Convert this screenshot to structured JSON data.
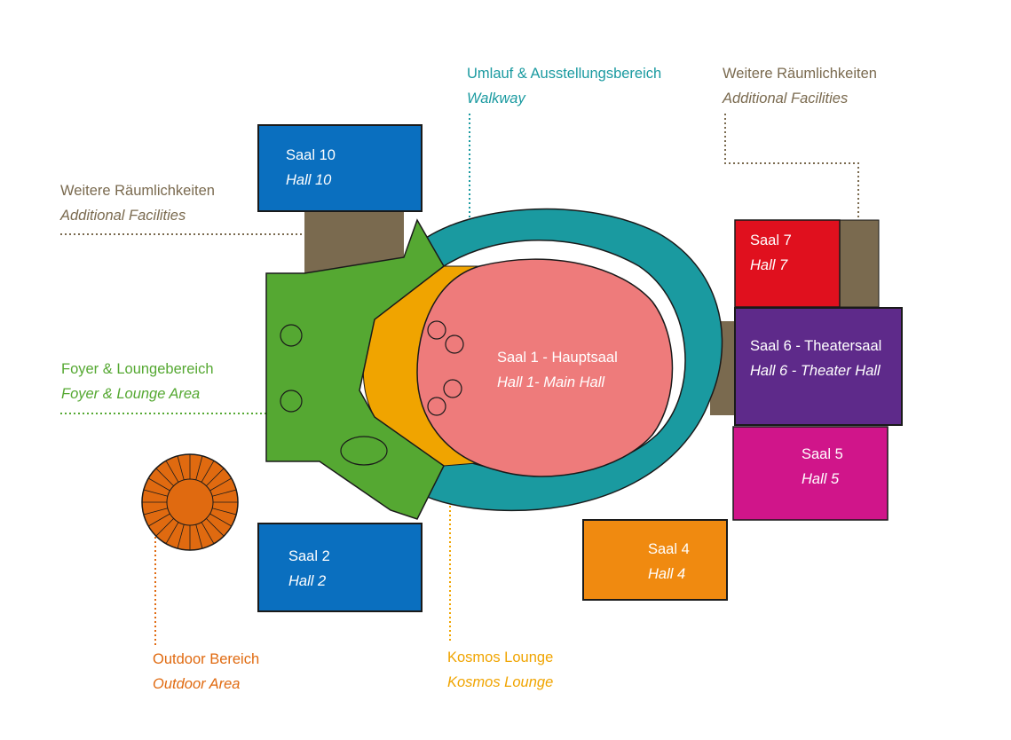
{
  "legend": {
    "walkway": {
      "de": "Umlauf & Ausstellungsbereich",
      "en": "Walkway",
      "color": "#1a9aa0"
    },
    "facilities_left": {
      "de": "Weitere Räumlichkeiten",
      "en": "Additional Facilities",
      "color": "#7a6a4f"
    },
    "facilities_right": {
      "de": "Weitere Räumlichkeiten",
      "en": "Additional Facilities",
      "color": "#7a6a4f"
    },
    "foyer": {
      "de": "Foyer & Loungebereich",
      "en": "Foyer & Lounge Area",
      "color": "#55a832"
    },
    "outdoor": {
      "de": "Outdoor Bereich",
      "en": "Outdoor Area",
      "color": "#e06a10"
    },
    "kosmos": {
      "de": "Kosmos Lounge",
      "en": "Kosmos Lounge",
      "color": "#f0a400"
    }
  },
  "rooms": {
    "saal10": {
      "de": "Saal 10",
      "en": "Hall 10",
      "color": "#0a6fbf"
    },
    "saal2": {
      "de": "Saal 2",
      "en": "Hall 2",
      "color": "#0a6fbf"
    },
    "saal1": {
      "de": "Saal 1 - Hauptsaal",
      "en": "Hall 1- Main Hall",
      "color": "#ee7b7b"
    },
    "saal7": {
      "de": "Saal 7",
      "en": "Hall 7",
      "color": "#e0101e"
    },
    "saal6": {
      "de": "Saal 6 - Theatersaal",
      "en": "Hall 6 - Theater Hall",
      "color": "#5e2a8a"
    },
    "saal5": {
      "de": "Saal 5",
      "en": "Hall 5",
      "color": "#d0158a"
    },
    "saal4": {
      "de": "Saal 4",
      "en": "Hall 4",
      "color": "#f08a10"
    }
  },
  "colors": {
    "facilities": "#7a6a4f",
    "walkway": "#1a9aa0",
    "foyer": "#55a832",
    "kosmos": "#f0a400",
    "outline": "#1a1a1a"
  }
}
